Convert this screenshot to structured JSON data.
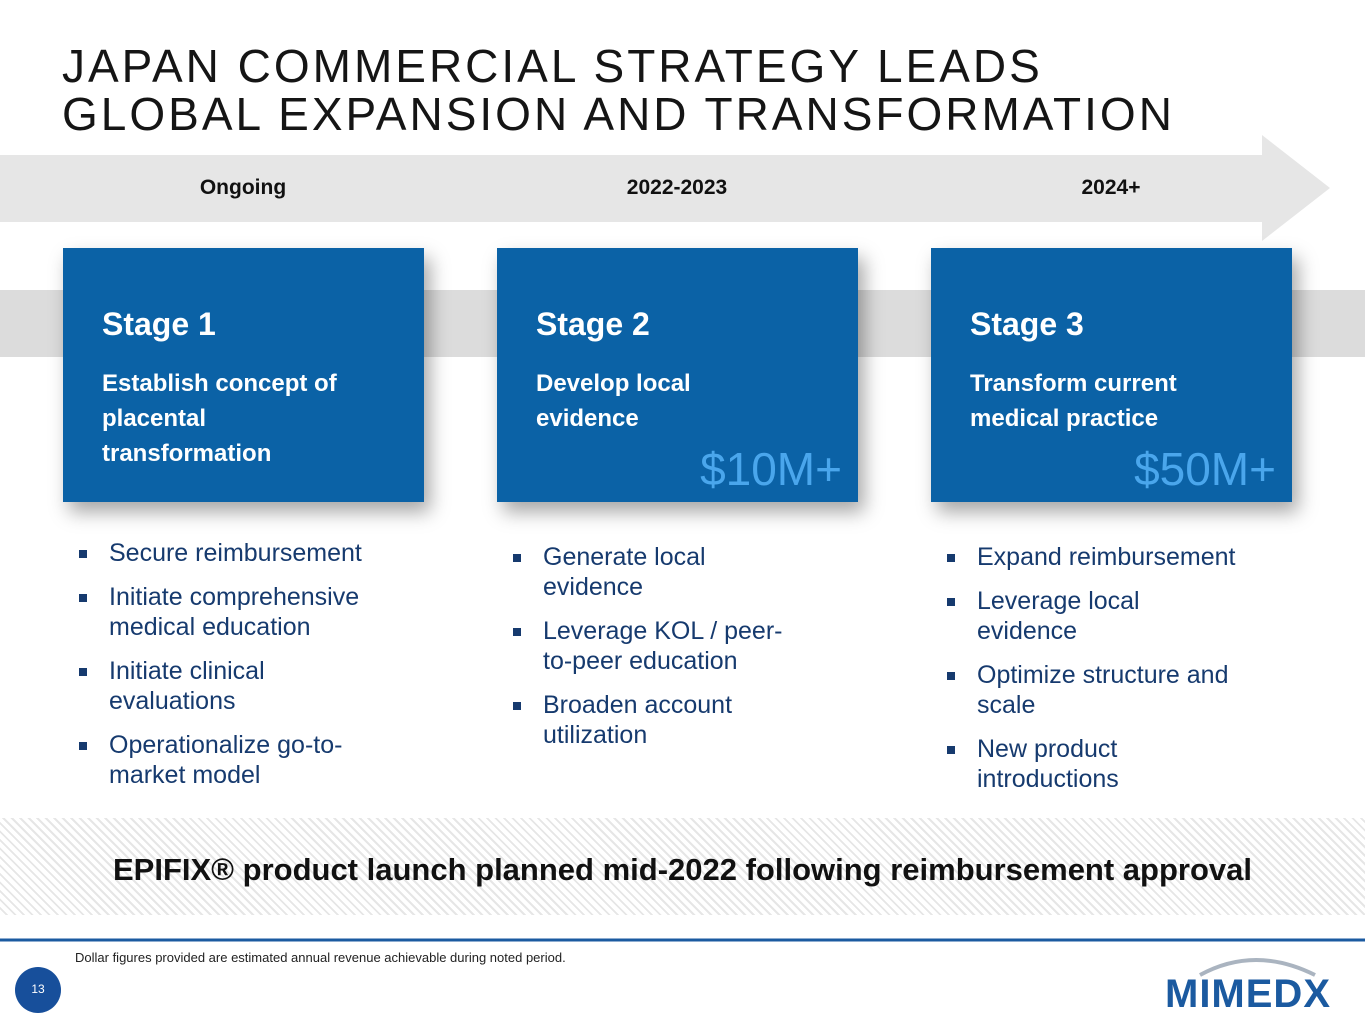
{
  "header": {
    "title_lines": [
      "JAPAN COMMERCIAL STRATEGY LEADS",
      "GLOBAL EXPANSION AND TRANSFORMATION"
    ]
  },
  "stages": [
    {
      "period": "Ongoing",
      "name": "Stage 1",
      "description": "Establish concept of placental transformation",
      "bullets": [
        "Secure reimbursement",
        "Initiate comprehensive medical education",
        "Initiate clinical evaluations",
        "Operationalize go-to-market model"
      ]
    },
    {
      "period": "2022-2023",
      "name": "Stage 2",
      "description": "Develop local evidence",
      "revenue": "$10M+",
      "bullets": [
        "Generate local evidence",
        "Leverage KOL / peer-to-peer education",
        "Broaden account utilization"
      ]
    },
    {
      "period": "2024+",
      "name": "Stage 3",
      "description": "Transform current medical practice",
      "revenue": "$50M+",
      "bullets": [
        "Expand reimbursement",
        "Leverage local evidence",
        "Optimize structure and scale",
        "New product introductions"
      ]
    }
  ],
  "banner": "EPIFIX® product launch planned mid-2022 following reimbursement approval",
  "footnote": "Dollar figures provided are estimated annual revenue achievable during noted period.",
  "page_number": "13",
  "logo": "MIMEDX"
}
